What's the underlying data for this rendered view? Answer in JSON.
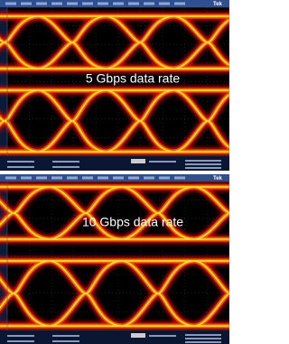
{
  "panels": [
    {
      "brand": "Tek",
      "label": "5 Gbps data rate"
    },
    {
      "brand": "Tek",
      "label": "10 Gbps data rate"
    }
  ]
}
